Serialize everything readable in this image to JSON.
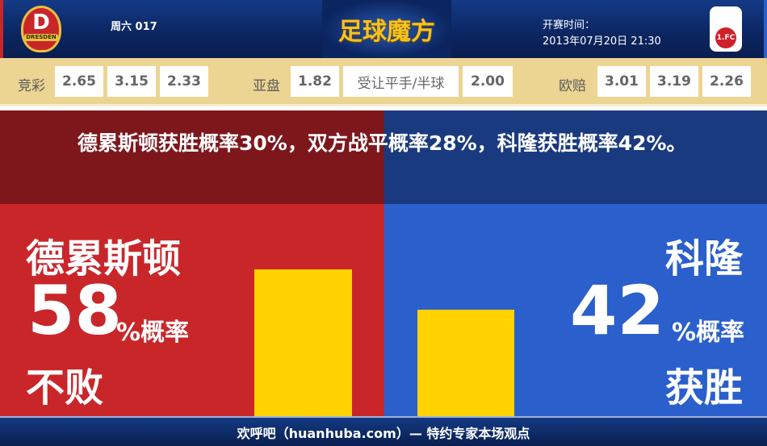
{
  "header": {
    "home_logo_text": "DRESDEN",
    "home_logo_letter": "D",
    "away_logo_text": "1.FC",
    "match_no": "周六 017",
    "brand": "足球魔方",
    "kickoff_label": "开赛时间：",
    "kickoff_time": "2013年07月20日 21:30"
  },
  "odds": {
    "jingcai": {
      "label": "竞彩",
      "values": [
        "2.65",
        "3.15",
        "2.33"
      ]
    },
    "yapan": {
      "label": "亚盘",
      "values": [
        "1.82",
        "受让平手/半球",
        "2.00"
      ]
    },
    "oupei": {
      "label": "欧赔",
      "values": [
        "3.01",
        "3.19",
        "2.26"
      ]
    }
  },
  "summary": "德累斯顿获胜概率30%，双方战平概率28%，科隆获胜概率42%。",
  "home": {
    "name": "德累斯顿",
    "percent": "58",
    "unit": "%概率",
    "outcome": "不败",
    "bar_value": 58,
    "color": "#c9262a"
  },
  "away": {
    "name": "科隆",
    "percent": "42",
    "unit": "%概率",
    "outcome": "获胜",
    "bar_value": 42,
    "color": "#2a5fcc"
  },
  "bar_color": "#ffd200",
  "footer": "欢呼吧（huanhuba.com）— 特约专家本场观点"
}
